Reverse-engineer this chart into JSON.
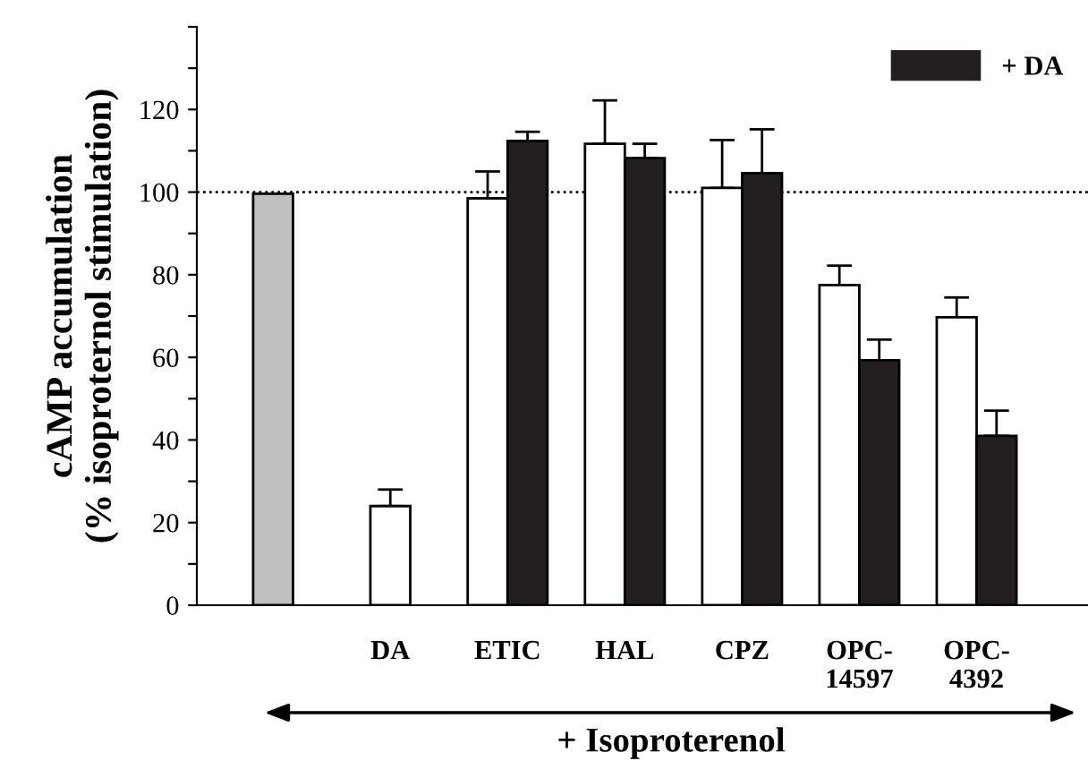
{
  "chart_data": {
    "type": "bar",
    "categories": [
      null,
      "DA",
      "ETIC",
      "HAL",
      "CPZ",
      "OPC-\n14597",
      "OPC-\n4392"
    ],
    "ylabel": "cAMP accumulation\n(% isoproternol stimulation)",
    "series": [
      {
        "colors": [
          "#c0c0c0",
          "#ffffff",
          "#ffffff",
          "#ffffff",
          "#ffffff",
          "#ffffff",
          "#ffffff"
        ],
        "values": [
          99.6,
          24,
          98.5,
          111.7,
          101,
          77.5,
          69.7
        ],
        "errors": [
          null,
          4,
          6.5,
          10.5,
          11.6,
          4.7,
          4.8
        ]
      },
      {
        "name": "+ DA",
        "color": "#231f20",
        "values": [
          null,
          null,
          112.4,
          108.2,
          104.6,
          59.3,
          41
        ],
        "errors": [
          null,
          null,
          2.2,
          3.5,
          10.6,
          5,
          6.1
        ]
      }
    ],
    "ylim": [
      0,
      140
    ],
    "yticks": [
      0,
      {
        "value": 10,
        "label": null
      },
      20,
      {
        "value": 30,
        "label": null
      },
      40,
      {
        "value": 50,
        "label": null
      },
      60,
      {
        "value": 70,
        "label": null
      },
      80,
      {
        "value": 90,
        "label": null
      },
      100,
      {
        "value": 110,
        "label": null
      },
      120,
      {
        "value": 130,
        "label": null
      },
      {
        "value": 140,
        "label": null
      }
    ],
    "ref_lines": [
      {
        "axis": "y",
        "value": 100,
        "line_style": "dotted",
        "color": "#000000"
      }
    ],
    "annotations": [
      "+ Isoproterenol"
    ],
    "legend": "top right",
    "grid": false
  }
}
